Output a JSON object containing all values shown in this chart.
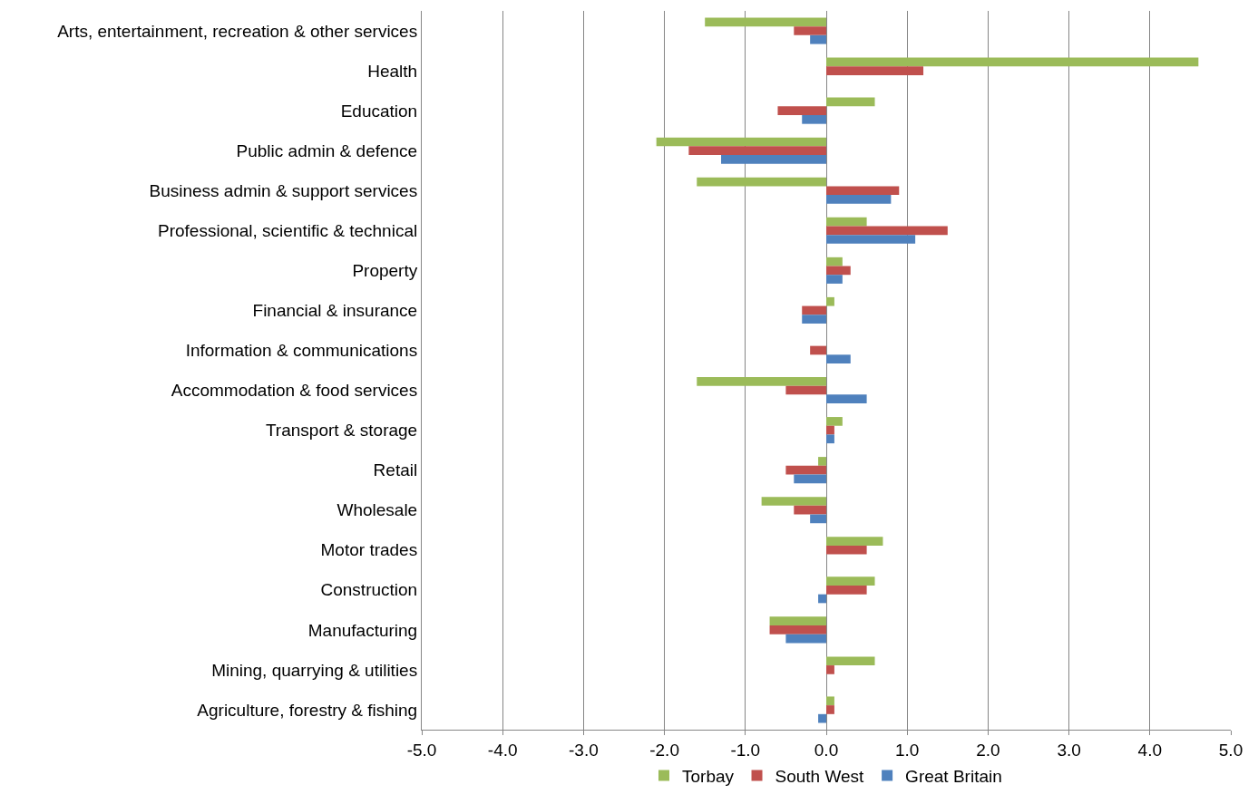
{
  "chart_data": {
    "type": "bar",
    "orientation": "horizontal",
    "categories": [
      "Arts, entertainment, recreation & other services",
      "Health",
      "Education",
      "Public admin & defence",
      "Business admin & support services",
      "Professional, scientific & technical",
      "Property",
      "Financial & insurance",
      "Information & communications",
      "Accommodation & food services",
      "Transport & storage",
      "Retail",
      "Wholesale",
      "Motor trades",
      "Construction",
      "Manufacturing",
      "Mining, quarrying & utilities",
      "Agriculture, forestry & fishing"
    ],
    "series": [
      {
        "name": "Torbay",
        "color": "#9bbb59",
        "values": [
          -1.5,
          4.6,
          0.6,
          -2.1,
          -1.6,
          0.5,
          0.2,
          0.1,
          0,
          -1.6,
          0.2,
          -0.1,
          -0.8,
          0.7,
          0.6,
          -0.7,
          0.6,
          0.1
        ]
      },
      {
        "name": "South West",
        "color": "#c0504d",
        "values": [
          -0.4,
          1.2,
          -0.6,
          -1.7,
          0.9,
          1.5,
          0.3,
          -0.3,
          -0.2,
          -0.5,
          0.1,
          -0.5,
          -0.4,
          0.5,
          0.5,
          -0.7,
          0.1,
          0.1
        ]
      },
      {
        "name": "Great Britain",
        "color": "#4f81bd",
        "values": [
          -0.2,
          0,
          -0.3,
          -1.3,
          0.8,
          1.1,
          0.2,
          -0.3,
          0.3,
          0.5,
          0.1,
          -0.4,
          -0.2,
          0,
          -0.1,
          -0.5,
          0,
          -0.1
        ]
      }
    ],
    "xlim": [
      -5,
      5
    ],
    "xticks": [
      {
        "value": -5,
        "label": "-5.0"
      },
      {
        "value": -4,
        "label": "-4.0"
      },
      {
        "value": -3,
        "label": "-3.0"
      },
      {
        "value": -2,
        "label": "-2.0"
      },
      {
        "value": -1,
        "label": "-1.0"
      },
      {
        "value": 0,
        "label": "0.0"
      },
      {
        "value": 1,
        "label": "1.0"
      },
      {
        "value": 2,
        "label": "2.0"
      },
      {
        "value": 3,
        "label": "3.0"
      },
      {
        "value": 4,
        "label": "4.0"
      },
      {
        "value": 5,
        "label": "5.0"
      }
    ],
    "grid": "x",
    "legend": "bottom"
  }
}
